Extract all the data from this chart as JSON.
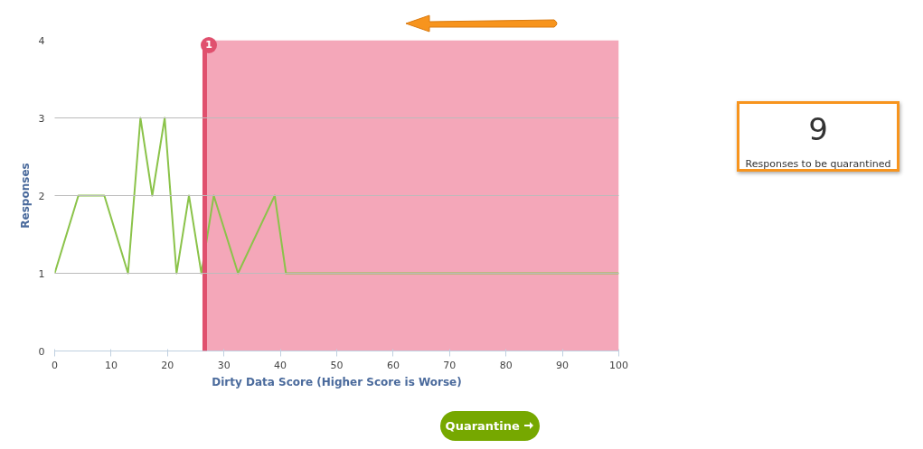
{
  "chart_data": {
    "type": "line",
    "xlabel": "Dirty Data Score (Higher Score is Worse)",
    "ylabel": "Responses",
    "xlim": [
      0,
      100
    ],
    "xticks": [
      0,
      10,
      20,
      30,
      40,
      50,
      60,
      70,
      80,
      90,
      100
    ],
    "ylim": [
      0,
      4
    ],
    "yticks": [
      0,
      1,
      2,
      3,
      4
    ],
    "grid": "y",
    "marker": "none",
    "line_style": "solid",
    "series": [
      {
        "color": "#8bc34a",
        "x": [
          0,
          4.2,
          8.8,
          13,
          15.2,
          17.3,
          19.5,
          21.6,
          23.8,
          26,
          28.2,
          32.5,
          39,
          41,
          100
        ],
        "values": [
          1,
          2,
          2,
          1,
          3,
          2,
          3,
          1,
          2,
          1,
          2,
          1,
          2,
          1,
          1
        ]
      }
    ],
    "ref_lines": [
      {
        "axis": "x",
        "value": 26.6,
        "color": "#e0506e",
        "line_style": "solid"
      }
    ],
    "bands": [
      {
        "axis": "x",
        "from": 26.6,
        "to": 100,
        "color": "#f4a7b9"
      }
    ],
    "annotations": [
      {
        "text": "1",
        "x": 26.6,
        "y": 4
      },
      "9",
      "Responses to be quarantined",
      "Quarantine"
    ]
  }
}
